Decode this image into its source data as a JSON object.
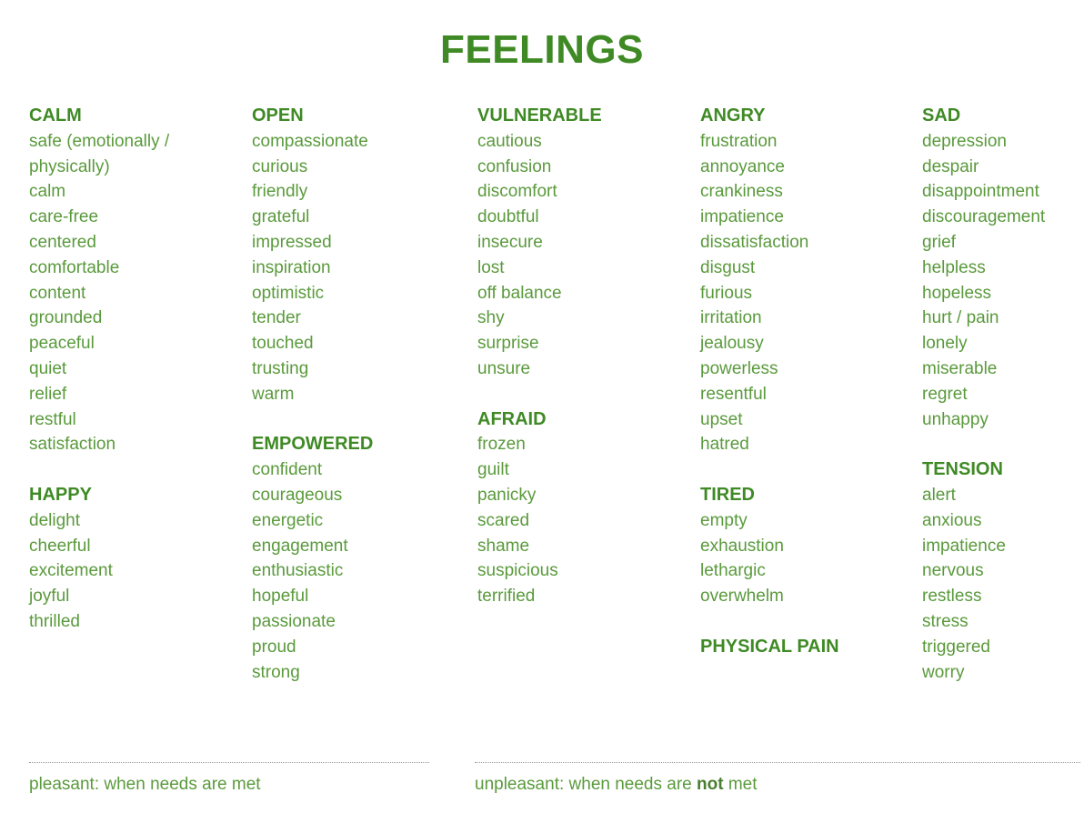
{
  "title": "FEELINGS",
  "columns": [
    {
      "sections": [
        {
          "heading": "CALM",
          "items": [
            "safe (emotionally /",
            "physically)",
            "calm",
            "care-free",
            "centered",
            "comfortable",
            "content",
            "grounded",
            "peaceful",
            "quiet",
            "relief",
            "restful",
            "satisfaction"
          ]
        },
        {
          "heading": "HAPPY",
          "items": [
            "delight",
            "cheerful",
            "excitement",
            "joyful",
            "thrilled"
          ]
        }
      ]
    },
    {
      "sections": [
        {
          "heading": "OPEN",
          "items": [
            "compassionate",
            "curious",
            "friendly",
            "grateful",
            "impressed",
            "inspiration",
            "optimistic",
            "tender",
            "touched",
            "trusting",
            "warm"
          ]
        },
        {
          "heading": "EMPOWERED",
          "items": [
            "confident",
            "courageous",
            "energetic",
            "engagement",
            "enthusiastic",
            "hopeful",
            "passionate",
            "proud",
            "strong"
          ]
        }
      ]
    },
    {
      "sections": [
        {
          "heading": "VULNERABLE",
          "items": [
            "cautious",
            "confusion",
            "discomfort",
            "doubtful",
            "insecure",
            "lost",
            "off balance",
            "shy",
            "surprise",
            "unsure"
          ]
        },
        {
          "heading": "AFRAID",
          "items": [
            "frozen",
            "guilt",
            "panicky",
            "scared",
            "shame",
            "suspicious",
            "terrified"
          ]
        }
      ]
    },
    {
      "sections": [
        {
          "heading": "ANGRY",
          "items": [
            "frustration",
            "annoyance",
            "crankiness",
            "impatience",
            "dissatisfaction",
            "disgust",
            "furious",
            "irritation",
            "jealousy",
            "powerless",
            "resentful",
            "upset",
            "hatred"
          ]
        },
        {
          "heading": "TIRED",
          "items": [
            "empty",
            "exhaustion",
            "lethargic",
            "overwhelm"
          ]
        },
        {
          "heading": "PHYSICAL PAIN",
          "items": []
        }
      ]
    },
    {
      "sections": [
        {
          "heading": "SAD",
          "items": [
            "depression",
            "despair",
            "disappointment",
            "discouragement",
            "grief",
            "helpless",
            "hopeless",
            "hurt / pain",
            "lonely",
            "miserable",
            "regret",
            "unhappy"
          ]
        },
        {
          "heading": "TENSION",
          "items": [
            "alert",
            "anxious",
            "impatience",
            "nervous",
            "restless",
            "stress",
            "triggered",
            "worry"
          ]
        }
      ]
    }
  ],
  "footer": {
    "pleasant": "pleasant: when needs are met",
    "unpleasant_prefix": "unpleasant: when needs are ",
    "unpleasant_emphasis": "not",
    "unpleasant_suffix": " met"
  },
  "colors": {
    "heading": "#3f8a25",
    "text": "#5a9a3c",
    "rule": "#9a9a9a"
  }
}
